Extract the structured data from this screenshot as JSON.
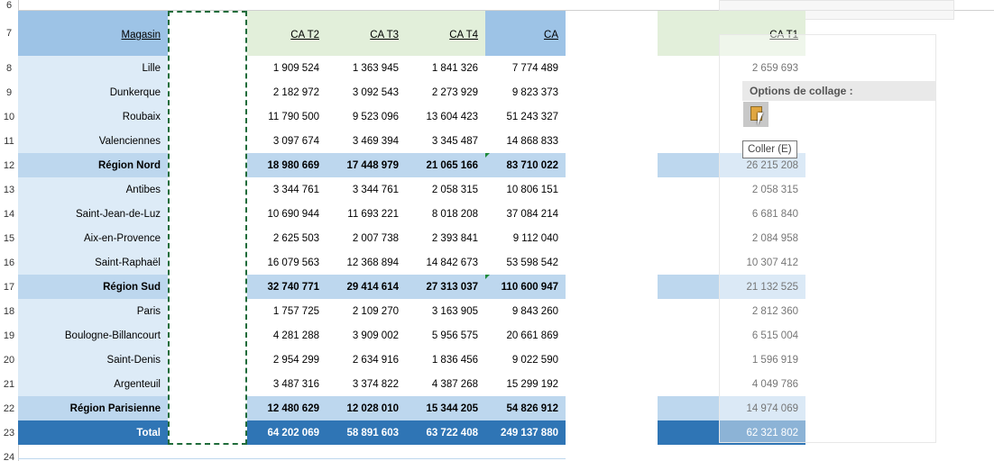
{
  "row_numbers": [
    "6",
    "7",
    "8",
    "9",
    "10",
    "11",
    "12",
    "13",
    "14",
    "15",
    "16",
    "17",
    "18",
    "19",
    "20",
    "21",
    "22",
    "23",
    "24"
  ],
  "table": {
    "headers": [
      "Magasin",
      "CA T2",
      "CA T3",
      "CA T4",
      "CA"
    ],
    "rows": [
      [
        "Lille",
        "1 909 524",
        "1 363 945",
        "1 841 326",
        "7 774 489"
      ],
      [
        "Dunkerque",
        "2 182 972",
        "3 092 543",
        "2 273 929",
        "9 823 373"
      ],
      [
        "Roubaix",
        "11 790 500",
        "9 523 096",
        "13 604 423",
        "51 243 327"
      ],
      [
        "Valenciennes",
        "3 097 674",
        "3 469 394",
        "3 345 487",
        "14 868 833"
      ],
      [
        "Région Nord",
        "18 980 669",
        "17 448 979",
        "21 065 166",
        "83 710 022"
      ],
      [
        "Antibes",
        "3 344 761",
        "3 344 761",
        "2 058 315",
        "10 806 151"
      ],
      [
        "Saint-Jean-de-Luz",
        "10 690 944",
        "11 693 221",
        "8 018 208",
        "37 084 214"
      ],
      [
        "Aix-en-Provence",
        "2 625 503",
        "2 007 738",
        "2 393 841",
        "9 112 040"
      ],
      [
        "Saint-Raphaël",
        "16 079 563",
        "12 368 894",
        "14 842 673",
        "53 598 542"
      ],
      [
        "Région Sud",
        "32 740 771",
        "29 414 614",
        "27 313 037",
        "110 600 947"
      ],
      [
        "Paris",
        "1 757 725",
        "2 109 270",
        "3 163 905",
        "9 843 260"
      ],
      [
        "Boulogne-Billancourt",
        "4 281 288",
        "3 909 002",
        "5 956 575",
        "20 661 869"
      ],
      [
        "Saint-Denis",
        "2 954 299",
        "2 634 916",
        "1 836 456",
        "9 022 590"
      ],
      [
        "Argenteuil",
        "3 487 316",
        "3 374 822",
        "4 387 268",
        "15 299 192"
      ],
      [
        "Région Parisienne",
        "12 480 629",
        "12 028 010",
        "15 344 205",
        "54 826 912"
      ],
      [
        "Total",
        "64 202 069",
        "58 891 603",
        "63 722 408",
        "249 137 880"
      ]
    ]
  },
  "side": {
    "header": "CA T1",
    "values": [
      "2 659 693",
      null,
      null,
      null,
      "26 215 208",
      "2 058 315",
      "6 681 840",
      "2 084 958",
      "10 307 412",
      "21 132 525",
      "2 812 360",
      "6 515 004",
      "1 596 919",
      "4 049 786",
      "14 974 069",
      "62 321 802"
    ]
  },
  "paste_menu": {
    "title": "Options de collage :",
    "tooltip": "Coller (E)"
  }
}
